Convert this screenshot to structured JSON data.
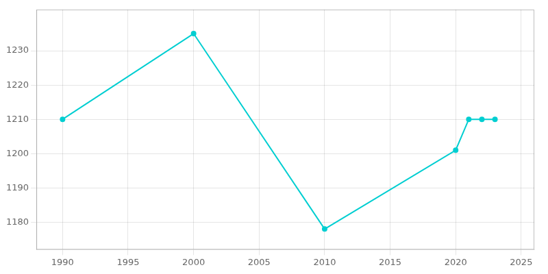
{
  "chart_data": {
    "type": "line",
    "x": [
      1990,
      2000,
      2010,
      2020,
      2021,
      2022,
      2023
    ],
    "values": [
      1210,
      1235,
      1178,
      1201,
      1210,
      1210,
      1210
    ],
    "color": "#00CED1",
    "marker": "o",
    "xlim": [
      1988,
      2026
    ],
    "ylim": [
      1172,
      1242
    ],
    "xticks": [
      1990,
      1995,
      2000,
      2005,
      2010,
      2015,
      2020,
      2025
    ],
    "yticks": [
      1180,
      1190,
      1200,
      1210,
      1220,
      1230
    ],
    "grid": true
  }
}
